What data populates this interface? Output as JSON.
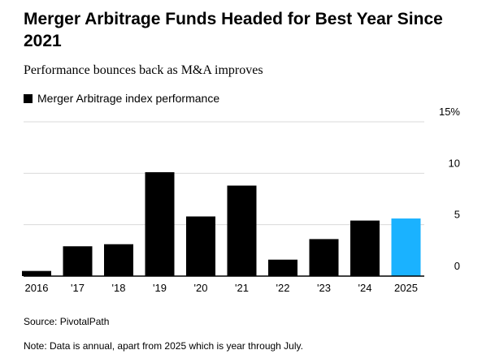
{
  "header": {
    "title": "Merger Arbitrage Funds Headed for Best Year Since 2021",
    "subtitle": "Performance bounces back as M&A improves"
  },
  "legend": {
    "label": "Merger Arbitrage index performance"
  },
  "chart_data": {
    "type": "bar",
    "categories": [
      "2016",
      "'17",
      "'18",
      "'19",
      "'20",
      "'21",
      "'22",
      "'23",
      "'24",
      "2025"
    ],
    "series": [
      {
        "name": "Merger Arbitrage index performance",
        "values": [
          0.5,
          2.9,
          3.1,
          10.1,
          5.8,
          8.8,
          1.6,
          3.6,
          5.4,
          5.6
        ]
      }
    ],
    "highlight_index": 9,
    "colors": {
      "bar": "#000000",
      "highlight": "#1ab2ff",
      "grid": "#d9d9d9",
      "axis": "#000000"
    },
    "y_ticks": [
      "0",
      "5",
      "10",
      "15%"
    ],
    "y_tick_values": [
      0,
      5,
      10,
      15
    ],
    "ylim": [
      0,
      15
    ],
    "y_axis_position": "right",
    "grid": true,
    "legend_position": "top-left",
    "title": "Merger Arbitrage Funds Headed for Best Year Since 2021",
    "subtitle": "Performance bounces back as M&A improves",
    "xlabel": "",
    "ylabel": ""
  },
  "footer": {
    "source": "Source: PivotalPath",
    "note": "Note: Data is annual, apart from 2025 which is year through July."
  }
}
